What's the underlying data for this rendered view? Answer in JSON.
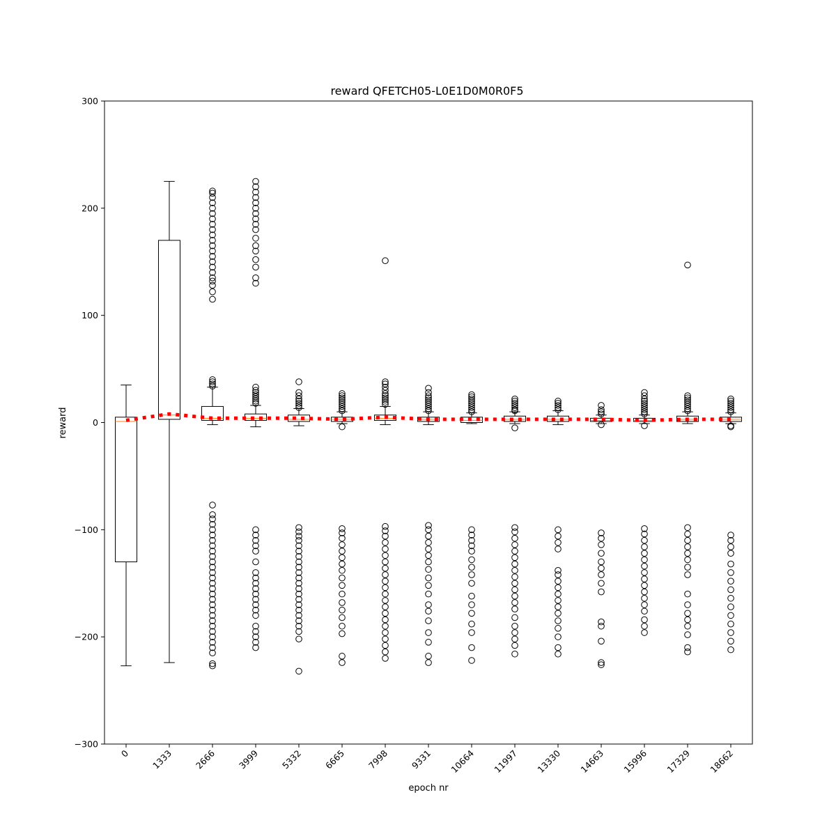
{
  "chart_data": {
    "type": "box",
    "title": "reward QFETCH05-L0E1D0M0R0F5",
    "xlabel": "epoch nr",
    "ylabel": "reward",
    "ylim": [
      -300,
      300
    ],
    "yticks": [
      -300,
      -200,
      -100,
      0,
      100,
      200,
      300
    ],
    "categories": [
      "0",
      "1333",
      "2666",
      "3999",
      "5332",
      "6665",
      "7998",
      "9331",
      "10664",
      "11997",
      "13330",
      "14663",
      "15996",
      "17329",
      "18662"
    ],
    "boxes": [
      {
        "q1": -130,
        "median": 1,
        "q3": 5,
        "whisker_low": -227,
        "whisker_high": 35,
        "outliers": []
      },
      {
        "q1": 3,
        "median": 7,
        "q3": 170,
        "whisker_low": -224,
        "whisker_high": 225,
        "outliers": []
      },
      {
        "q1": 2,
        "median": 4,
        "q3": 15,
        "whisker_low": -2,
        "whisker_high": 33,
        "outliers": [
          34,
          36,
          38,
          40,
          115,
          122,
          128,
          132,
          135,
          140,
          145,
          150,
          155,
          160,
          165,
          170,
          175,
          180,
          185,
          190,
          195,
          200,
          205,
          210,
          214,
          216,
          -77,
          -86,
          -90,
          -95,
          -100,
          -105,
          -110,
          -115,
          -120,
          -125,
          -130,
          -135,
          -140,
          -145,
          -150,
          -155,
          -160,
          -165,
          -170,
          -175,
          -180,
          -185,
          -190,
          -195,
          -200,
          -205,
          -210,
          -215,
          -225,
          -227
        ]
      },
      {
        "q1": 2,
        "median": 4,
        "q3": 8,
        "whisker_low": -4,
        "whisker_high": 16,
        "outliers": [
          18,
          20,
          22,
          24,
          26,
          28,
          30,
          33,
          130,
          135,
          145,
          152,
          160,
          165,
          172,
          180,
          185,
          190,
          195,
          200,
          205,
          210,
          215,
          220,
          225,
          -100,
          -105,
          -110,
          -115,
          -120,
          -130,
          -140,
          -145,
          -150,
          -155,
          -160,
          -165,
          -170,
          -175,
          -180,
          -190,
          -195,
          -200,
          -205,
          -210
        ]
      },
      {
        "q1": 1,
        "median": 3,
        "q3": 7,
        "whisker_low": -3,
        "whisker_high": 13,
        "outliers": [
          14,
          16,
          18,
          20,
          22,
          25,
          28,
          38,
          -98,
          -102,
          -106,
          -110,
          -115,
          -120,
          -125,
          -130,
          -135,
          -140,
          -145,
          -150,
          -155,
          -160,
          -165,
          -170,
          -175,
          -180,
          -185,
          -190,
          -195,
          -202,
          -232
        ]
      },
      {
        "q1": 1,
        "median": 3,
        "q3": 5,
        "whisker_low": -1,
        "whisker_high": 10,
        "outliers": [
          11,
          13,
          15,
          17,
          19,
          21,
          23,
          25,
          27,
          -4,
          -99,
          -103,
          -108,
          -114,
          -120,
          -126,
          -132,
          -138,
          -145,
          -152,
          -160,
          -168,
          -175,
          -182,
          -190,
          -197,
          -218,
          -224
        ]
      },
      {
        "q1": 2,
        "median": 4,
        "q3": 7,
        "whisker_low": -2,
        "whisker_high": 15,
        "outliers": [
          17,
          19,
          21,
          23,
          25,
          27,
          30,
          33,
          36,
          38,
          151,
          -97,
          -101,
          -106,
          -112,
          -118,
          -124,
          -130,
          -136,
          -142,
          -148,
          -154,
          -160,
          -166,
          -172,
          -178,
          -184,
          -190,
          -196,
          -202,
          -208,
          -214,
          -220
        ]
      },
      {
        "q1": 1,
        "median": 3,
        "q3": 5,
        "whisker_low": -2,
        "whisker_high": 10,
        "outliers": [
          11,
          13,
          15,
          17,
          19,
          21,
          23,
          25,
          28,
          32,
          -96,
          -100,
          -106,
          -112,
          -118,
          -124,
          -130,
          -137,
          -145,
          -152,
          -160,
          -170,
          -176,
          -185,
          -196,
          -205,
          -218,
          -224
        ]
      },
      {
        "q1": 0,
        "median": 2,
        "q3": 5,
        "whisker_low": -1,
        "whisker_high": 9,
        "outliers": [
          10,
          12,
          14,
          16,
          18,
          20,
          22,
          24,
          26,
          -100,
          -105,
          -110,
          -115,
          -120,
          -128,
          -135,
          -142,
          -150,
          -162,
          -170,
          -178,
          -188,
          -196,
          -210,
          -222
        ]
      },
      {
        "q1": 1,
        "median": 3,
        "q3": 6,
        "whisker_low": -1,
        "whisker_high": 10,
        "outliers": [
          11,
          12,
          14,
          16,
          18,
          20,
          22,
          -5,
          -98,
          -102,
          -108,
          -114,
          -120,
          -126,
          -132,
          -138,
          -144,
          -150,
          -156,
          -162,
          -168,
          -174,
          -182,
          -190,
          -196,
          -202,
          -208,
          -216
        ]
      },
      {
        "q1": 1,
        "median": 3,
        "q3": 6,
        "whisker_low": -2,
        "whisker_high": 11,
        "outliers": [
          12,
          14,
          16,
          18,
          20,
          -100,
          -106,
          -112,
          -118,
          -138,
          -142,
          -148,
          -154,
          -160,
          -166,
          -172,
          -178,
          -185,
          -192,
          -200,
          -210,
          -216
        ]
      },
      {
        "q1": 1,
        "median": 2,
        "q3": 4,
        "whisker_low": -1,
        "whisker_high": 7,
        "outliers": [
          8,
          10,
          12,
          16,
          -2,
          -103,
          -108,
          -114,
          -122,
          -130,
          -136,
          -142,
          -150,
          -158,
          -186,
          -190,
          -204,
          -224,
          -226
        ]
      },
      {
        "q1": 1,
        "median": 2,
        "q3": 4,
        "whisker_low": -1,
        "whisker_high": 7,
        "outliers": [
          8,
          10,
          12,
          14,
          16,
          18,
          20,
          22,
          25,
          28,
          -3,
          -99,
          -104,
          -110,
          -116,
          -122,
          -128,
          -134,
          -140,
          -146,
          -152,
          -158,
          -164,
          -170,
          -176,
          -184,
          -190,
          -196
        ]
      },
      {
        "q1": 1,
        "median": 3,
        "q3": 6,
        "whisker_low": -1,
        "whisker_high": 10,
        "outliers": [
          11,
          13,
          15,
          17,
          19,
          21,
          23,
          25,
          147,
          -98,
          -104,
          -110,
          -116,
          -122,
          -128,
          -135,
          -142,
          -160,
          -170,
          -178,
          -184,
          -190,
          -198,
          -210,
          -214
        ]
      },
      {
        "q1": 1,
        "median": 3,
        "q3": 5,
        "whisker_low": -1,
        "whisker_high": 9,
        "outliers": [
          10,
          12,
          14,
          16,
          18,
          20,
          22,
          -3,
          -4,
          -105,
          -110,
          -116,
          -122,
          -132,
          -140,
          -148,
          -156,
          -164,
          -172,
          -180,
          -188,
          -196,
          -204,
          -212
        ]
      }
    ],
    "mean_line": {
      "style": "dotted",
      "color": "#ff0000",
      "values": [
        2,
        8,
        4,
        4,
        4,
        3,
        5,
        3,
        3,
        3,
        3,
        3,
        2,
        3,
        3
      ]
    },
    "colors": {
      "box": "#000000",
      "median": "#ff7f0e",
      "mean": "#ff0000"
    }
  }
}
